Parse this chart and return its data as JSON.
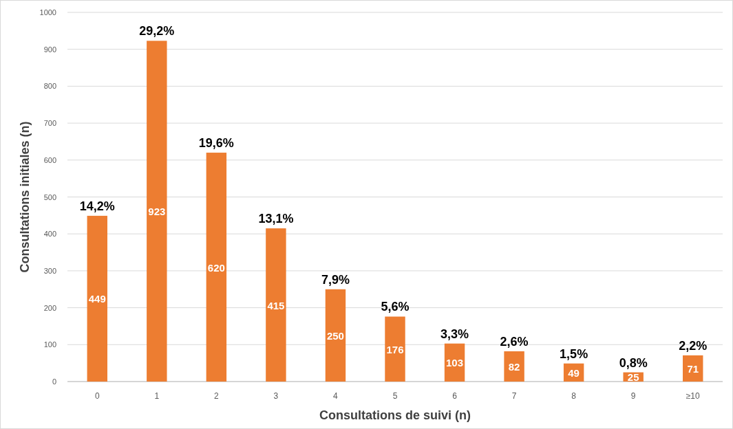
{
  "chart_data": {
    "type": "bar",
    "xlabel": "Consultations de suivi (n)",
    "ylabel": "Consultations initiales (n)",
    "categories": [
      "0",
      "1",
      "2",
      "3",
      "4",
      "5",
      "6",
      "7",
      "8",
      "9",
      "≥10"
    ],
    "values": [
      449,
      923,
      620,
      415,
      250,
      176,
      103,
      82,
      49,
      25,
      71
    ],
    "color": "#ed7d31",
    "ylim": [
      0,
      1000
    ],
    "yticks": [
      0,
      100,
      200,
      300,
      400,
      500,
      600,
      700,
      800,
      900,
      1000
    ],
    "grid": "y",
    "data_labels": true,
    "annotations": [
      {
        "text": "14,2%",
        "x": "0",
        "y": 449
      },
      {
        "text": "29,2%",
        "x": "1",
        "y": 923
      },
      {
        "text": "19,6%",
        "x": "2",
        "y": 620
      },
      {
        "text": "13,1%",
        "x": "3",
        "y": 415
      },
      {
        "text": "7,9%",
        "x": "4",
        "y": 250
      },
      {
        "text": "5,6%",
        "x": "5",
        "y": 176
      },
      {
        "text": "3,3%",
        "x": "6",
        "y": 103
      },
      {
        "text": "2,6%",
        "x": "7",
        "y": 82
      },
      {
        "text": "1,5%",
        "x": "8",
        "y": 49
      },
      {
        "text": "0,8%",
        "x": "9",
        "y": 25
      },
      {
        "text": "2,2%",
        "x": "≥10",
        "y": 71
      }
    ]
  }
}
